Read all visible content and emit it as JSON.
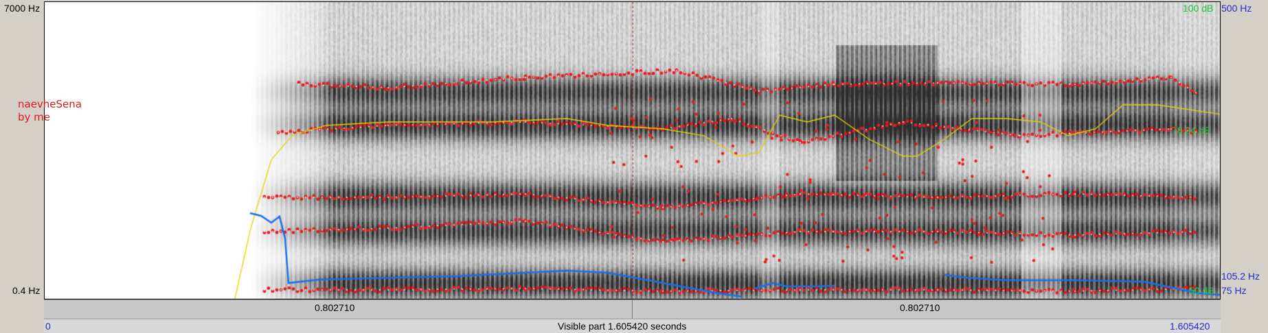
{
  "left_axis": {
    "top_label": "7000 Hz",
    "bottom_label": "0.4 Hz"
  },
  "right_axis": {
    "pitch_top": "500 Hz",
    "pitch_cursor": "105.2 Hz",
    "pitch_bottom": "75 Hz",
    "intensity_top": "100 dB",
    "intensity_mid": "78.24 dB",
    "intensity_bottom": "50 dB"
  },
  "annotation": {
    "line1": "naevheSena",
    "line2": "by me"
  },
  "time_bar": {
    "left_duration": "0.802710",
    "right_duration": "0.802710"
  },
  "bottom_bar": {
    "start": "0",
    "visible_label": "Visible part 1.605420 seconds",
    "end": "1.605420"
  },
  "colors": {
    "formant": "#e81c1c",
    "intensity": "#e6d200",
    "pitch": "#1a6ef0",
    "cursor": "#cc2020",
    "axis_blue": "#1e2cd0",
    "axis_green": "#22c43a"
  },
  "icons": {
    "formant_mark": "red-dot",
    "cursor_line": "dashed-red-line"
  }
}
